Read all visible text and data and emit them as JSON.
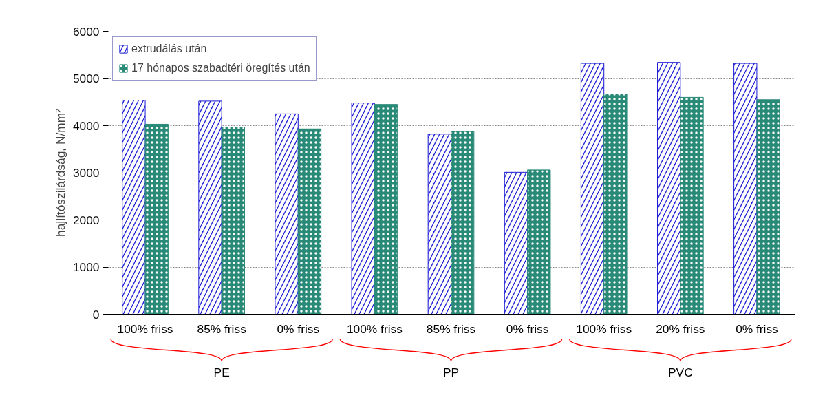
{
  "chart_data": {
    "type": "bar",
    "ylabel": "hajlítószilárdság, N/mm²",
    "categories": [
      "100% friss",
      "85% friss",
      "0% friss",
      "100% friss",
      "85% friss",
      "0% friss",
      "100% friss",
      "20% friss",
      "0% friss"
    ],
    "series": [
      {
        "name": "extrudálás után",
        "color": "#1f1fd6",
        "values": [
          4540,
          4520,
          4250,
          4480,
          3820,
          3010,
          5320,
          5340,
          5320
        ]
      },
      {
        "name": "17 hónapos szabadtéri öregítés után",
        "color": "#2a8a78",
        "values": [
          4030,
          3970,
          3930,
          4450,
          3880,
          3060,
          4670,
          4600,
          4550
        ]
      }
    ],
    "annotations": [
      "PE",
      "PP",
      "PVC"
    ],
    "ylim": [
      0,
      6000
    ],
    "yticks": [
      0,
      1000,
      2000,
      3000,
      4000,
      5000,
      6000
    ],
    "grid": "y",
    "legend": "top left"
  }
}
